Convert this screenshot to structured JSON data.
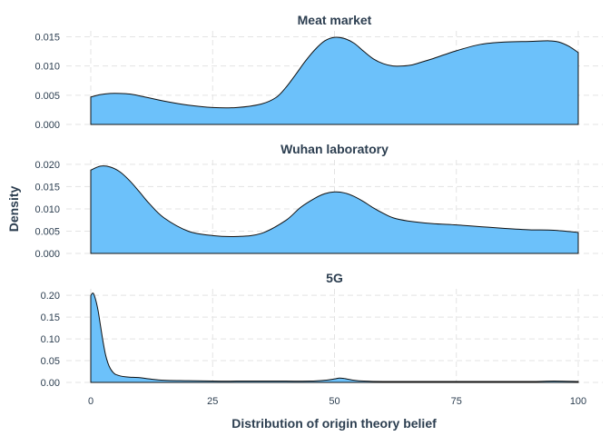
{
  "chart_data": {
    "type": "area",
    "xlabel": "Distribution of origin theory belief",
    "ylabel": "Density",
    "xlim": [
      0,
      100
    ],
    "xticks": [
      0,
      25,
      50,
      75,
      100
    ],
    "grid": true,
    "fill_color": "#6cc1fa",
    "line_color": "#111111",
    "panels": [
      {
        "title": "Meat market",
        "ylim": [
          0,
          0.016
        ],
        "yticks": [
          "0.000",
          "0.005",
          "0.010",
          "0.015"
        ],
        "x": [
          0,
          2,
          4,
          6,
          8,
          10,
          15,
          20,
          25,
          30,
          35,
          38,
          40,
          42,
          44,
          46,
          48,
          50,
          52,
          54,
          56,
          58,
          60,
          62,
          64,
          66,
          68,
          70,
          75,
          80,
          85,
          90,
          94,
          96,
          98,
          100
        ],
        "y": [
          0.0047,
          0.0051,
          0.0053,
          0.0053,
          0.0052,
          0.0049,
          0.004,
          0.0033,
          0.0029,
          0.0029,
          0.0035,
          0.0046,
          0.0063,
          0.0085,
          0.0108,
          0.0128,
          0.0143,
          0.0149,
          0.0147,
          0.0139,
          0.0125,
          0.0112,
          0.0104,
          0.01,
          0.01,
          0.0102,
          0.0107,
          0.0112,
          0.0126,
          0.0137,
          0.0141,
          0.0142,
          0.0143,
          0.0141,
          0.0134,
          0.0123
        ]
      },
      {
        "title": "Wuhan laboratory",
        "ylim": [
          0,
          0.021
        ],
        "yticks": [
          "0.000",
          "0.005",
          "0.010",
          "0.015",
          "0.020"
        ],
        "x": [
          0,
          2,
          4,
          6,
          8,
          10,
          12,
          15,
          20,
          25,
          30,
          35,
          40,
          43,
          46,
          48,
          50,
          52,
          54,
          56,
          58,
          60,
          62,
          65,
          70,
          75,
          80,
          85,
          90,
          95,
          100
        ],
        "y": [
          0.0187,
          0.0196,
          0.0194,
          0.0183,
          0.0163,
          0.0138,
          0.0112,
          0.008,
          0.005,
          0.004,
          0.0038,
          0.0045,
          0.0074,
          0.0103,
          0.0124,
          0.0134,
          0.0138,
          0.0136,
          0.0128,
          0.0116,
          0.0102,
          0.009,
          0.008,
          0.0073,
          0.0067,
          0.0064,
          0.006,
          0.0056,
          0.0053,
          0.0052,
          0.0047
        ]
      },
      {
        "title": "5G",
        "ylim": [
          0,
          0.215
        ],
        "yticks": [
          "0.00",
          "0.05",
          "0.10",
          "0.15",
          "0.20"
        ],
        "x": [
          0,
          0.5,
          1,
          1.5,
          2,
          2.5,
          3,
          3.5,
          4,
          4.5,
          5,
          6,
          7,
          8,
          10,
          12,
          15,
          20,
          25,
          30,
          35,
          40,
          45,
          48,
          50,
          51,
          52,
          54,
          56,
          60,
          70,
          80,
          90,
          95,
          100
        ],
        "y": [
          0.2,
          0.205,
          0.19,
          0.165,
          0.13,
          0.095,
          0.065,
          0.045,
          0.032,
          0.024,
          0.019,
          0.015,
          0.013,
          0.012,
          0.011,
          0.008,
          0.005,
          0.004,
          0.003,
          0.003,
          0.003,
          0.003,
          0.003,
          0.005,
          0.008,
          0.01,
          0.009,
          0.005,
          0.003,
          0.002,
          0.002,
          0.002,
          0.002,
          0.003,
          0.002
        ]
      }
    ]
  }
}
